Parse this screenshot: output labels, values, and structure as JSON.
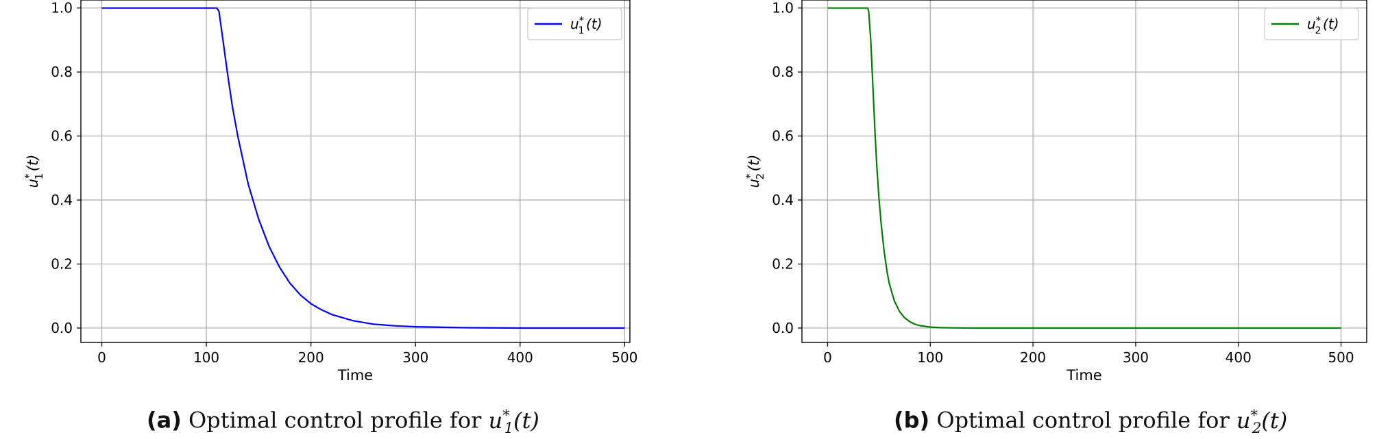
{
  "chart_data": [
    {
      "type": "line",
      "panel_letter": "(a)",
      "caption_text": "Optimal control profile for",
      "caption_var": "u",
      "caption_sup": "*",
      "caption_sub": "1",
      "caption_arg": "(t)",
      "xlabel": "Time",
      "ylabel_var": "u",
      "ylabel_sup": "*",
      "ylabel_sub": "1",
      "ylabel_arg": "(t)",
      "xlim": [
        -20,
        505
      ],
      "ylim": [
        -0.045,
        1.025
      ],
      "xticks": [
        0,
        100,
        200,
        300,
        400,
        500
      ],
      "yticks": [
        0.0,
        0.2,
        0.4,
        0.6,
        0.8,
        1.0
      ],
      "xtick_labels": [
        "0",
        "100",
        "200",
        "300",
        "400",
        "500"
      ],
      "ytick_labels": [
        "0.0",
        "0.2",
        "0.4",
        "0.6",
        "0.8",
        "1.0"
      ],
      "grid": true,
      "legend_position": "top-right",
      "series": [
        {
          "name": "u1*(t)",
          "legend_var": "u",
          "legend_sup": "*",
          "legend_sub": "1",
          "legend_arg": "(t)",
          "color": "#0000ff",
          "x": [
            0,
            110,
            112,
            115,
            120,
            125,
            130,
            140,
            150,
            160,
            170,
            180,
            190,
            200,
            210,
            220,
            240,
            260,
            280,
            300,
            350,
            400,
            450,
            500
          ],
          "y": [
            1.0,
            1.0,
            0.99,
            0.92,
            0.8,
            0.69,
            0.6,
            0.45,
            0.34,
            0.255,
            0.19,
            0.14,
            0.103,
            0.076,
            0.057,
            0.042,
            0.023,
            0.012,
            0.007,
            0.004,
            0.001,
            0.0,
            0.0,
            0.0
          ]
        }
      ]
    },
    {
      "type": "line",
      "panel_letter": "(b)",
      "caption_text": "Optimal control profile for",
      "caption_var": "u",
      "caption_sup": "*",
      "caption_sub": "2",
      "caption_arg": "(t)",
      "xlabel": "Time",
      "ylabel_var": "u",
      "ylabel_sup": "*",
      "ylabel_sub": "2",
      "ylabel_arg": "(t)",
      "xlim": [
        -25,
        525
      ],
      "ylim": [
        -0.045,
        1.025
      ],
      "xticks": [
        0,
        100,
        200,
        300,
        400,
        500
      ],
      "yticks": [
        0.0,
        0.2,
        0.4,
        0.6,
        0.8,
        1.0
      ],
      "xtick_labels": [
        "0",
        "100",
        "200",
        "300",
        "400",
        "500"
      ],
      "ytick_labels": [
        "0.0",
        "0.2",
        "0.4",
        "0.6",
        "0.8",
        "1.0"
      ],
      "grid": true,
      "legend_position": "top-right",
      "series": [
        {
          "name": "u2*(t)",
          "legend_var": "u",
          "legend_sup": "*",
          "legend_sub": "2",
          "legend_arg": "(t)",
          "color": "#008000",
          "x": [
            0,
            39,
            40,
            42,
            44,
            46,
            48,
            50,
            52,
            55,
            58,
            60,
            65,
            70,
            75,
            80,
            85,
            90,
            100,
            110,
            120,
            140,
            170,
            200,
            300,
            400,
            500
          ],
          "y": [
            1.0,
            1.0,
            0.99,
            0.9,
            0.76,
            0.62,
            0.5,
            0.405,
            0.33,
            0.24,
            0.175,
            0.14,
            0.085,
            0.052,
            0.032,
            0.02,
            0.012,
            0.0075,
            0.003,
            0.0012,
            0.0005,
            0.0,
            0.0,
            0.0,
            0.0,
            0.0,
            0.0
          ]
        }
      ]
    }
  ]
}
